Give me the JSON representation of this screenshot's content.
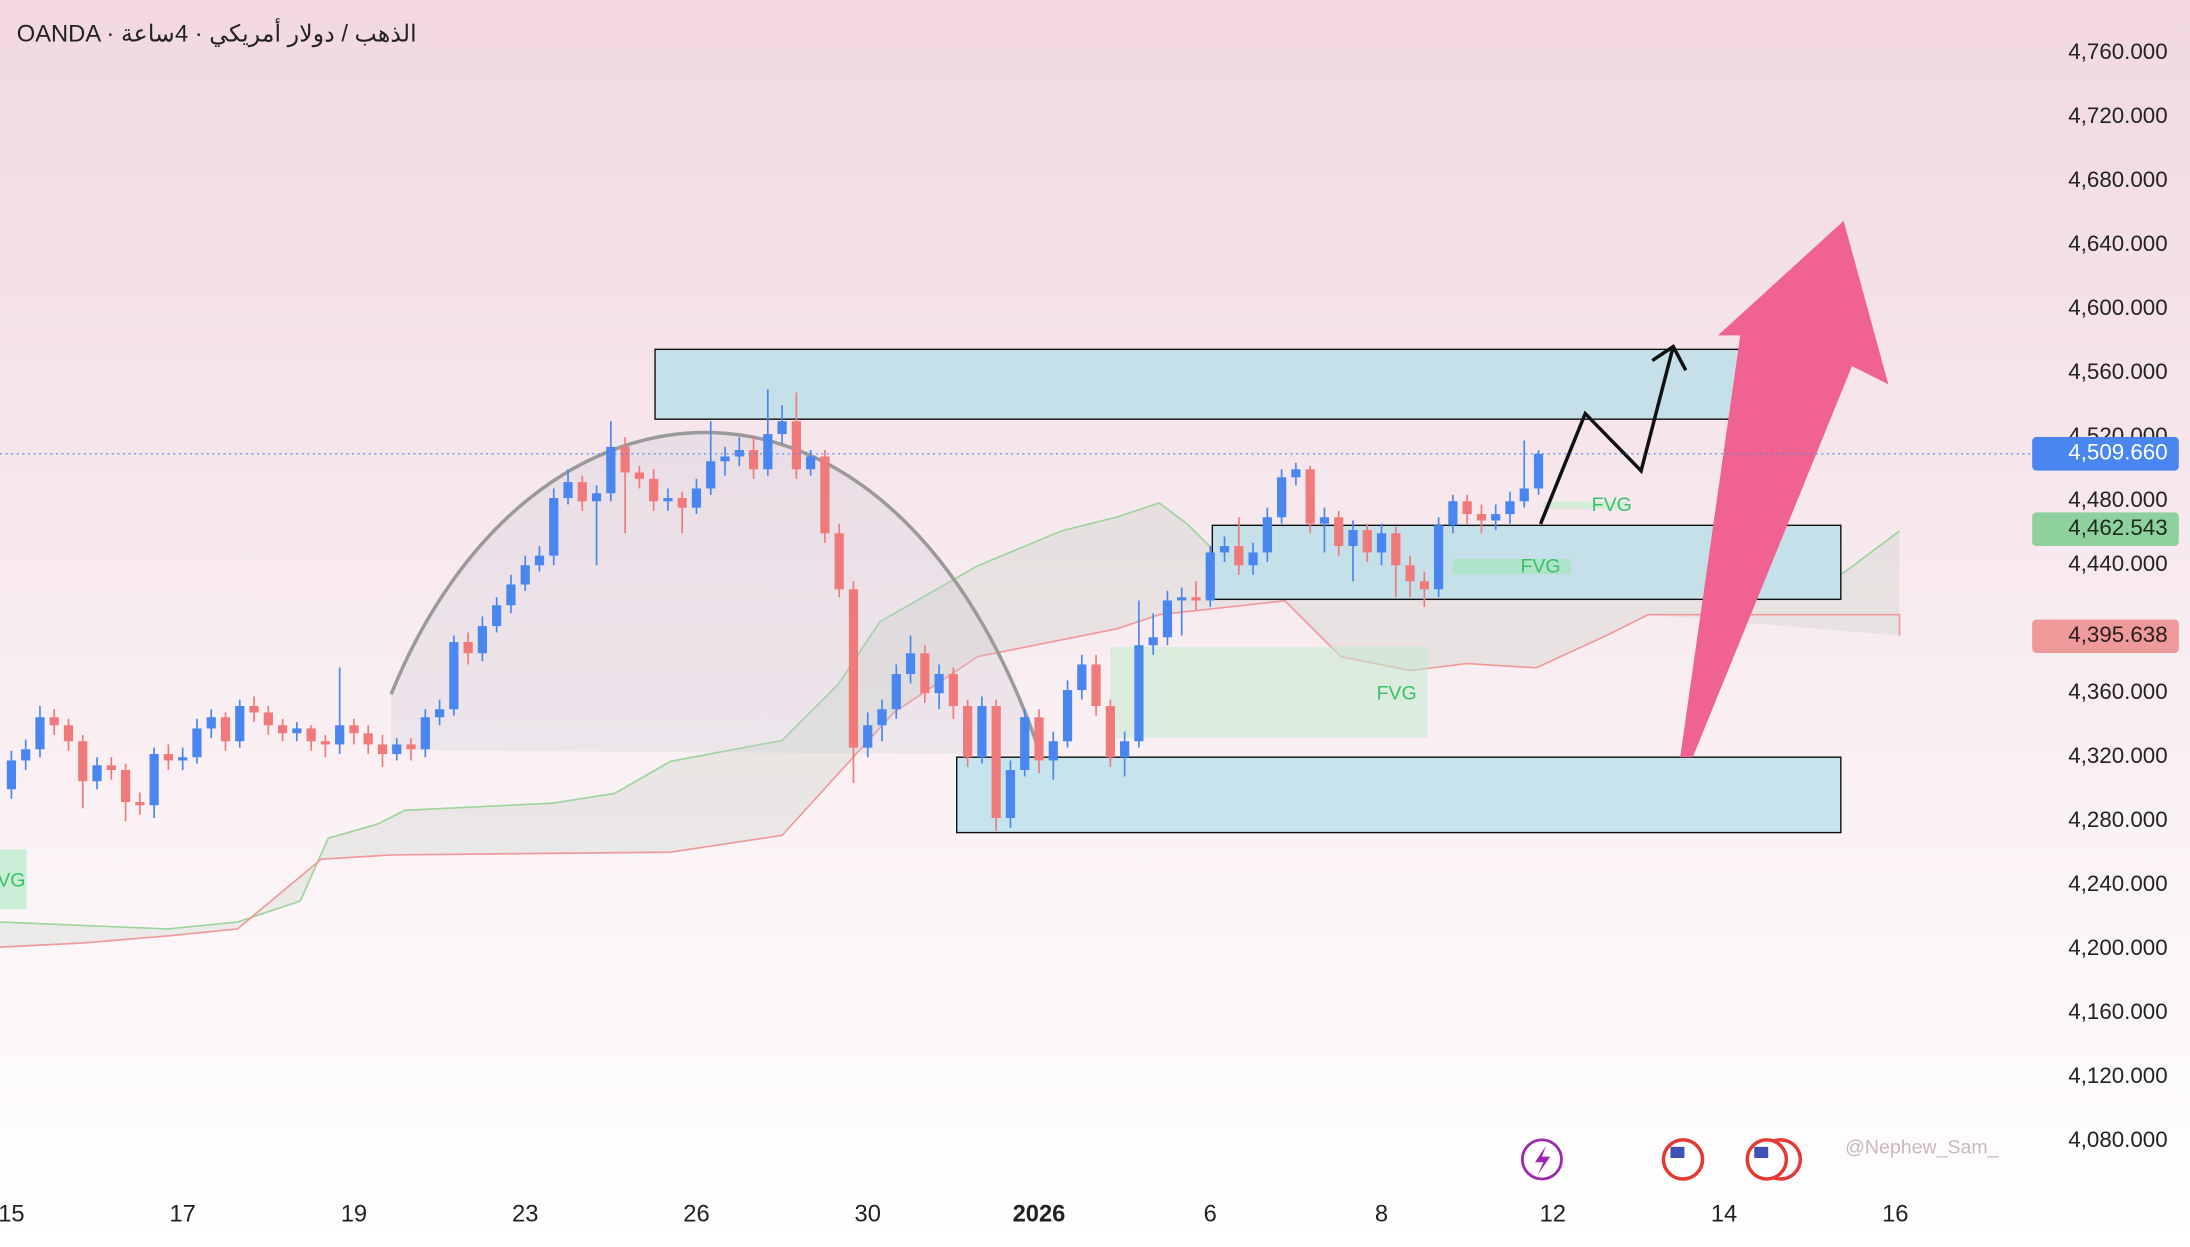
{
  "chart_data": {
    "type": "candlestick",
    "title": "OANDA · الذهب / دولار أمريكي · 4ساعة",
    "x": [
      0,
      1,
      2,
      3,
      4,
      5,
      6,
      7,
      8,
      9,
      10,
      11,
      12,
      13,
      14,
      15,
      16,
      17,
      18,
      19,
      20,
      21,
      22,
      23,
      24,
      25,
      26,
      27,
      28,
      29,
      30,
      31,
      32,
      33,
      34,
      35,
      36,
      37,
      38,
      39,
      40,
      41,
      42,
      43,
      44,
      45,
      46,
      47,
      48,
      49,
      50,
      51,
      52,
      53,
      54,
      55,
      56,
      57,
      58,
      59,
      60,
      61,
      62,
      63,
      64,
      65,
      66,
      67,
      68,
      69,
      70,
      71,
      72,
      73,
      74,
      75,
      76,
      77,
      78,
      79,
      80,
      81,
      82,
      83,
      84,
      85,
      86,
      87,
      88,
      89,
      90,
      91,
      92,
      93,
      94,
      95,
      96,
      97,
      98,
      99,
      100,
      101,
      102,
      103,
      104,
      105,
      106,
      107
    ],
    "open": [
      4300,
      4318,
      4325,
      4345,
      4340,
      4330,
      4305,
      4315,
      4312,
      4292,
      4290,
      4322,
      4318,
      4320,
      4338,
      4345,
      4330,
      4352,
      4348,
      4340,
      4335,
      4338,
      4330,
      4328,
      4340,
      4335,
      4328,
      4322,
      4328,
      4325,
      4345,
      4350,
      4392,
      4385,
      4402,
      4415,
      4428,
      4440,
      4446,
      4482,
      4492,
      4480,
      4485,
      4514,
      4498,
      4494,
      4480,
      4482,
      4476,
      4488,
      4505,
      4508,
      4512,
      4500,
      4522,
      4530,
      4500,
      4508,
      4460,
      4425,
      4326,
      4340,
      4350,
      4372,
      4385,
      4360,
      4372,
      4352,
      4320,
      4352,
      4282,
      4312,
      4345,
      4318,
      4330,
      4362,
      4378,
      4352,
      4320,
      4330,
      4390,
      4395,
      4418,
      4420,
      4418,
      4448,
      4452,
      4440,
      4448,
      4470,
      4495,
      4500,
      4466,
      4470,
      4452,
      4462,
      4448,
      4460,
      4440,
      4430,
      4425,
      4465,
      4480,
      4472,
      4468,
      4472,
      4480,
      4488
    ],
    "high": [
      4324,
      4331,
      4352,
      4350,
      4344,
      4334,
      4320,
      4320,
      4316,
      4298,
      4326,
      4328,
      4326,
      4344,
      4350,
      4348,
      4356,
      4358,
      4352,
      4344,
      4342,
      4340,
      4334,
      4376,
      4344,
      4340,
      4334,
      4332,
      4332,
      4350,
      4356,
      4396,
      4398,
      4408,
      4420,
      4434,
      4446,
      4452,
      4488,
      4500,
      4496,
      4490,
      4530,
      4520,
      4502,
      4500,
      4488,
      4486,
      4494,
      4530,
      4514,
      4520,
      4520,
      4550,
      4540,
      4548,
      4512,
      4512,
      4466,
      4430,
      4348,
      4356,
      4378,
      4396,
      4390,
      4378,
      4376,
      4356,
      4358,
      4356,
      4318,
      4350,
      4350,
      4336,
      4368,
      4384,
      4384,
      4356,
      4336,
      4418,
      4410,
      4424,
      4426,
      4430,
      4452,
      4458,
      4470,
      4454,
      4476,
      4500,
      4504,
      4502,
      4476,
      4474,
      4468,
      4466,
      4466,
      4464,
      4446,
      4436,
      4470,
      4484,
      4484,
      4478,
      4478,
      4486,
      4518,
      4512
    ],
    "low": [
      4294,
      4312,
      4320,
      4334,
      4324,
      4288,
      4300,
      4306,
      4280,
      4284,
      4282,
      4312,
      4312,
      4316,
      4332,
      4324,
      4326,
      4342,
      4334,
      4330,
      4330,
      4324,
      4320,
      4322,
      4328,
      4322,
      4314,
      4318,
      4318,
      4320,
      4340,
      4346,
      4378,
      4380,
      4398,
      4410,
      4424,
      4436,
      4440,
      4478,
      4474,
      4440,
      4480,
      4460,
      4488,
      4474,
      4474,
      4460,
      4472,
      4484,
      4496,
      4502,
      4494,
      4496,
      4516,
      4494,
      4496,
      4454,
      4420,
      4304,
      4320,
      4330,
      4344,
      4366,
      4354,
      4350,
      4344,
      4314,
      4316,
      4274,
      4276,
      4308,
      4310,
      4306,
      4326,
      4356,
      4346,
      4314,
      4308,
      4326,
      4384,
      4390,
      4396,
      4412,
      4414,
      4442,
      4434,
      4434,
      4442,
      4466,
      4490,
      4460,
      4448,
      4446,
      4430,
      4442,
      4440,
      4420,
      4420,
      4414,
      4420,
      4460,
      4466,
      4460,
      4462,
      4466,
      4476,
      4484
    ],
    "close": [
      4318,
      4325,
      4345,
      4340,
      4330,
      4305,
      4315,
      4312,
      4292,
      4290,
      4322,
      4318,
      4320,
      4338,
      4345,
      4330,
      4352,
      4348,
      4340,
      4335,
      4338,
      4330,
      4328,
      4340,
      4335,
      4328,
      4322,
      4328,
      4325,
      4345,
      4350,
      4392,
      4385,
      4402,
      4415,
      4428,
      4440,
      4446,
      4482,
      4492,
      4480,
      4485,
      4514,
      4498,
      4494,
      4480,
      4482,
      4476,
      4488,
      4505,
      4508,
      4512,
      4500,
      4522,
      4530,
      4500,
      4508,
      4460,
      4425,
      4326,
      4340,
      4350,
      4372,
      4385,
      4360,
      4372,
      4352,
      4320,
      4352,
      4282,
      4312,
      4345,
      4318,
      4330,
      4362,
      4378,
      4352,
      4320,
      4330,
      4390,
      4395,
      4418,
      4420,
      4418,
      4448,
      4452,
      4440,
      4448,
      4470,
      4495,
      4500,
      4466,
      4470,
      4452,
      4462,
      4448,
      4460,
      4440,
      4430,
      4425,
      4465,
      4480,
      4472,
      4468,
      4472,
      4480,
      4488,
      4509.66
    ],
    "up_color": "#4a86f0",
    "down_color": "#f07a7a",
    "xlim": [
      -0.8,
      141.1
    ],
    "xticks": [
      {
        "value": 0,
        "label": "15"
      },
      {
        "value": 12,
        "label": "17"
      },
      {
        "value": 24,
        "label": "19"
      },
      {
        "value": 36,
        "label": "23"
      },
      {
        "value": 48,
        "label": "26"
      },
      {
        "value": 60,
        "label": "30"
      },
      {
        "value": 72,
        "label": "2026",
        "bold": true
      },
      {
        "value": 84,
        "label": "6"
      },
      {
        "value": 96,
        "label": "8"
      },
      {
        "value": 108,
        "label": "12"
      },
      {
        "value": 120,
        "label": "14"
      },
      {
        "value": 132,
        "label": "16"
      }
    ],
    "ylim": [
      4052.9,
      4793.2
    ],
    "yticks": [
      {
        "value": 4080,
        "label": "4,080.000"
      },
      {
        "value": 4120,
        "label": "4,120.000"
      },
      {
        "value": 4160,
        "label": "4,160.000"
      },
      {
        "value": 4200,
        "label": "4,200.000"
      },
      {
        "value": 4240,
        "label": "4,240.000"
      },
      {
        "value": 4280,
        "label": "4,280.000"
      },
      {
        "value": 4320,
        "label": "4,320.000"
      },
      {
        "value": 4360,
        "label": "4,360.000"
      },
      {
        "value": 4400,
        "label": "4,400.000"
      },
      {
        "value": 4440,
        "label": "4,440.000"
      },
      {
        "value": 4480,
        "label": "4,480.000"
      },
      {
        "value": 4520,
        "label": "4,520.000"
      },
      {
        "value": 4560,
        "label": "4,560.000"
      },
      {
        "value": 4600,
        "label": "4,600.000"
      },
      {
        "value": 4640,
        "label": "4,640.000"
      },
      {
        "value": 4680,
        "label": "4,680.000"
      },
      {
        "value": 4720,
        "label": "4,720.000"
      },
      {
        "value": 4760,
        "label": "4,760.000"
      }
    ],
    "price_labels": [
      {
        "value": 4509.66,
        "label": "4,509.660",
        "color": "#4a86f0",
        "text_color": "#ffffff"
      },
      {
        "value": 4462.543,
        "label": "4,462.543",
        "color": "#8fd19e",
        "text_color": "#1c2b1c"
      },
      {
        "value": 4395.638,
        "label": "4,395.638",
        "color": "#ee9a9a",
        "text_color": "#2b1c1c"
      }
    ],
    "annotations": [
      "FVG",
      "FVG",
      "FVG",
      "VG"
    ],
    "watermark": "@Nephew_Sam_"
  }
}
